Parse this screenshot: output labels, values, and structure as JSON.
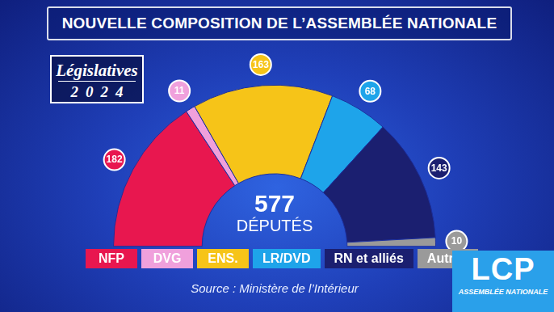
{
  "chart_data": {
    "type": "doughnut",
    "title": "NOUVELLE COMPOSITION DE L’ASSEMBLÉE NATIONALE",
    "subtitle": "Législatives 2024",
    "categories": [
      "NFP",
      "DVG",
      "ENS.",
      "LR/DVD",
      "RN et alliés",
      "Autres"
    ],
    "values": [
      182,
      11,
      163,
      68,
      143,
      10
    ],
    "colors": [
      "#e8174f",
      "#f0a0dc",
      "#f6c418",
      "#1ea4ea",
      "#1b1f70",
      "#9a9a9a"
    ],
    "data_labels": true,
    "legend": "bottom",
    "total": 577,
    "total_label": "DÉPUTÉS",
    "annotations": {
      "source": "Source : Ministère de l’Intérieur",
      "logo": "LCP",
      "logo_subtitle": "ASSEMBLÉE NATIONALE"
    }
  }
}
